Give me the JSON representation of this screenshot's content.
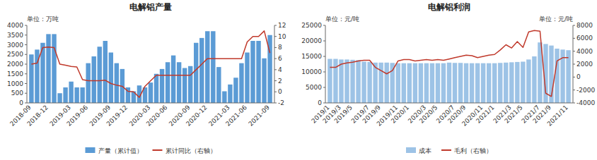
{
  "chart_data": [
    {
      "type": "bar",
      "title": "电解铝产量",
      "y_label": "单位：万吨",
      "categories": [
        "2018-09",
        null,
        null,
        "2018-12",
        null,
        null,
        null,
        "2019-03",
        null,
        null,
        "2019-06",
        null,
        null,
        null,
        "2019-09",
        null,
        null,
        "2019-12",
        null,
        null,
        null,
        "2020-03",
        null,
        null,
        "2020-06",
        null,
        null,
        null,
        "2020-09",
        null,
        null,
        "2020-12",
        null,
        null,
        null,
        "2021-03",
        null,
        null,
        "2021-06",
        null,
        null,
        null,
        "2021-09"
      ],
      "series": [
        {
          "name": "产量（累计值）",
          "type": "bar",
          "color": "#5b9bd5",
          "values": [
            2500,
            2750,
            3100,
            3550,
            3550,
            500,
            800,
            1100,
            800,
            800,
            2050,
            2400,
            2900,
            3200,
            2600,
            2050,
            1750,
            800,
            600,
            900,
            800,
            1050,
            1500,
            1750,
            2100,
            2450,
            2100,
            1800,
            1900,
            3100,
            3350,
            3700,
            3700,
            1850,
            600,
            950,
            1300,
            2050,
            2600,
            3200,
            3200,
            2300,
            3500
          ]
        },
        {
          "name": "累计同比（右轴）",
          "type": "line",
          "color": "#c0392b",
          "axis": "y2",
          "values": [
            5.0,
            5.2,
            8.0,
            8.1,
            8.0,
            5.0,
            4.8,
            4.6,
            4.5,
            2.2,
            2.0,
            2.0,
            2.0,
            2.1,
            1.5,
            1.2,
            1.0,
            0.1,
            0.0,
            -1.0,
            1.0,
            2.0,
            3.0,
            3.0,
            3.0,
            3.0,
            3.0,
            3.0,
            3.0,
            4.0,
            5.0,
            6.0,
            6.0,
            6.0,
            6.0,
            6.0,
            6.0,
            6.0,
            9.0,
            10.0,
            10.0,
            11.0,
            7.0
          ]
        }
      ],
      "ylim": [
        0,
        4000
      ],
      "yticks": [
        0,
        500,
        1000,
        1500,
        2000,
        2500,
        3000,
        3500,
        4000
      ],
      "y2lim": [
        -2,
        12
      ],
      "y2ticks": [
        -2,
        0,
        2,
        4,
        6,
        8,
        10,
        12
      ],
      "grid": false,
      "legend": "bottom"
    },
    {
      "type": "bar",
      "title": "电解铝利润",
      "y_label": "单位：元/吨",
      "y2_label": "单位：元/吨",
      "categories": [
        "2019/1",
        null,
        "2019/3",
        null,
        "2019/5",
        null,
        null,
        "2019/7",
        null,
        "2019/9",
        null,
        null,
        "2019/11",
        null,
        "2020/1",
        null,
        null,
        "2020/3",
        null,
        "2020/5",
        null,
        null,
        "2020/7",
        null,
        "2020/9",
        null,
        null,
        "2020/11",
        null,
        "2021/1",
        null,
        null,
        "2021/3",
        null,
        "2021/5",
        null,
        null,
        "2021/7",
        null,
        "2021/9",
        null,
        null,
        "2021/11"
      ],
      "series": [
        {
          "name": "成本",
          "type": "bar",
          "color": "#9dc3e6",
          "values": [
            14200,
            14200,
            14000,
            14000,
            13900,
            13800,
            13300,
            13200,
            13000,
            13000,
            13000,
            12900,
            12800,
            12800,
            12800,
            12800,
            12800,
            12800,
            12800,
            12800,
            12800,
            13000,
            12900,
            12900,
            12800,
            12800,
            12800,
            12800,
            12800,
            12800,
            12900,
            13000,
            13100,
            13200,
            13300,
            14000,
            15000,
            19500,
            19000,
            18500,
            17500,
            17200,
            17000
          ]
        },
        {
          "name": "毛利（右轴）",
          "type": "line",
          "color": "#c0392b",
          "axis": "y2",
          "values": [
            1500,
            1500,
            2000,
            2200,
            2300,
            2500,
            2600,
            2600,
            1500,
            1000,
            500,
            1000,
            2500,
            2700,
            2700,
            2500,
            2600,
            2700,
            2600,
            2700,
            2600,
            2800,
            3000,
            3200,
            3400,
            3300,
            3000,
            3200,
            3400,
            3500,
            4200,
            5000,
            4500,
            5500,
            4600,
            7000,
            7200,
            7100,
            -2500,
            -3000,
            2500,
            3000,
            3000
          ]
        }
      ],
      "ylim": [
        0,
        25000
      ],
      "yticks": [
        0,
        5000,
        10000,
        15000,
        20000,
        25000
      ],
      "y2lim": [
        -4000,
        8000
      ],
      "y2ticks": [
        -4000,
        -2000,
        0,
        2000,
        4000,
        6000,
        8000
      ],
      "grid": false,
      "legend": "bottom"
    }
  ]
}
